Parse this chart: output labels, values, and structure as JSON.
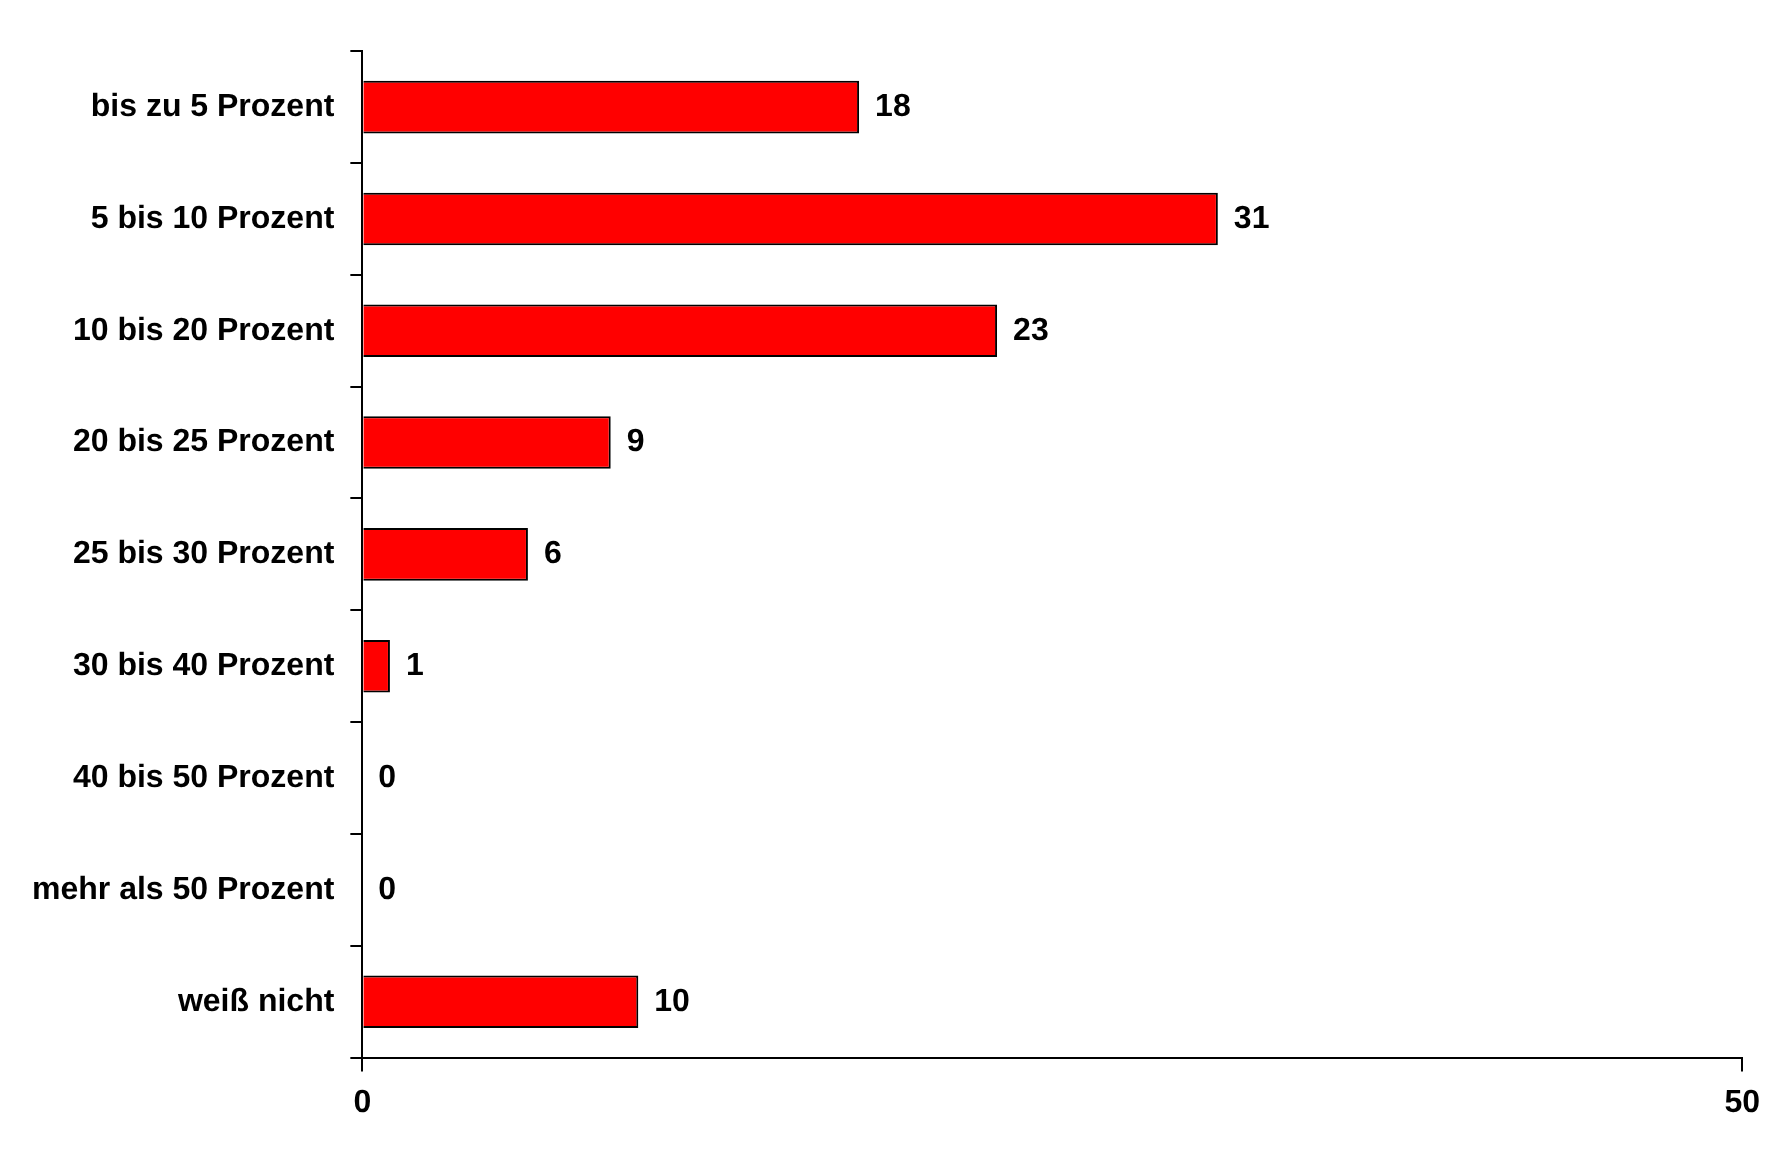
{
  "chart_data": {
    "type": "bar",
    "orientation": "horizontal",
    "categories": [
      "bis zu 5 Prozent",
      "5 bis 10 Prozent",
      "10 bis 20 Prozent",
      "20 bis 25 Prozent",
      "25 bis 30 Prozent",
      "30 bis 40 Prozent",
      "40 bis 50 Prozent",
      "mehr als 50 Prozent",
      "weiß nicht"
    ],
    "values": [
      18,
      31,
      23,
      9,
      6,
      1,
      0,
      0,
      10
    ],
    "color": "#ff0000",
    "xlim": [
      0,
      50
    ],
    "xticks": [
      0,
      50
    ],
    "data_labels": true,
    "grid": false,
    "legend": false
  }
}
